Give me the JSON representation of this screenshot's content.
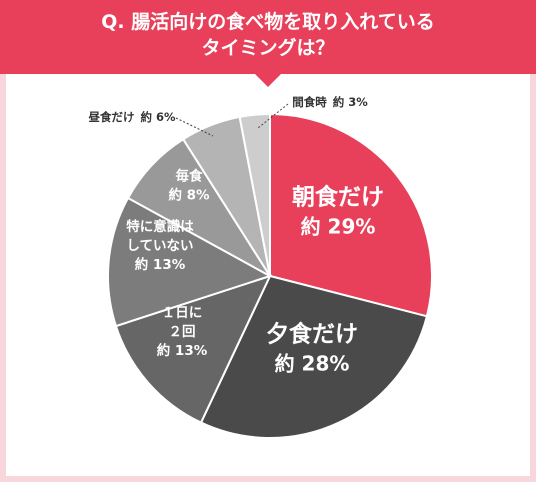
{
  "title_lines": [
    "Q. 腸活向けの食べ物を取り入れている",
    "タイミングは？"
  ],
  "colors": {
    "banner": "#e8405a",
    "background": "#f8d6dc",
    "panel": "#ffffff",
    "slice_borders": "#ffffff"
  },
  "chart_data": {
    "type": "pie",
    "title": "Q. 腸活向けの食べ物を取り入れている タイミングは？",
    "slices": [
      {
        "label_lines": [
          "朝食だけ"
        ],
        "value_text": "約 29%",
        "value": 29,
        "color": "#e8405a"
      },
      {
        "label_lines": [
          "夕食だけ"
        ],
        "value_text": "約 28%",
        "value": 28,
        "color": "#4a4a4a"
      },
      {
        "label_lines": [
          "１日に",
          "２回"
        ],
        "value_text": "約 13%",
        "value": 13,
        "color": "#666666"
      },
      {
        "label_lines": [
          "特に意識は",
          "していない"
        ],
        "value_text": "約 13%",
        "value": 13,
        "color": "#7c7c7c"
      },
      {
        "label_lines": [
          "毎食"
        ],
        "value_text": "約 8%",
        "value": 8,
        "color": "#999999"
      },
      {
        "label_lines": [
          "昼食だけ"
        ],
        "value_text": "約 6%",
        "value": 6,
        "color": "#b4b4b4"
      },
      {
        "label_lines": [
          "間食時"
        ],
        "value_text": "約 3%",
        "value": 3,
        "color": "#cdcdcd"
      }
    ]
  }
}
